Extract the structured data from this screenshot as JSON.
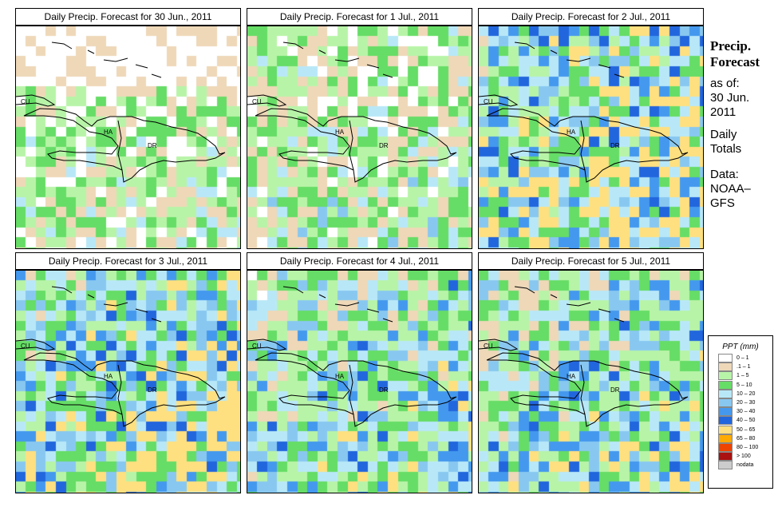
{
  "panels": [
    {
      "title": "Daily Precip. Forecast for  30 Jun., 2011",
      "seed": 11,
      "bias": -0.6,
      "east_bias": 0.0
    },
    {
      "title": "Daily Precip. Forecast for  1 Jul., 2011",
      "seed": 23,
      "bias": -0.3,
      "east_bias": 0.0
    },
    {
      "title": "Daily Precip. Forecast for  2 Jul., 2011",
      "seed": 37,
      "bias": 0.9,
      "east_bias": 0.3
    },
    {
      "title": "Daily Precip. Forecast for  3 Jul., 2011",
      "seed": 41,
      "bias": 0.6,
      "east_bias": 0.4
    },
    {
      "title": "Daily Precip. Forecast for  4 Jul., 2011",
      "seed": 53,
      "bias": 0.3,
      "east_bias": 0.2
    },
    {
      "title": "Daily Precip. Forecast for  5 Jul., 2011",
      "seed": 67,
      "bias": 0.4,
      "east_bias": 0.2
    }
  ],
  "map_labels": {
    "cu": "CU",
    "ha": "HA",
    "dr": "DR"
  },
  "side": {
    "title1": "Precip.",
    "title2": "Forecast",
    "asof": "as of:",
    "date1": "30 Jun.",
    "date2": "2011",
    "totals1": "Daily",
    "totals2": "Totals",
    "data1": "Data:",
    "data2": "NOAA–",
    "data3": "GFS"
  },
  "legend": {
    "title": "PPT (mm)",
    "items": [
      {
        "label": "0 – 1",
        "color": "#ffffff"
      },
      {
        "label": ".1 – 1",
        "color": "#eed8b8"
      },
      {
        "label": "1 – 5",
        "color": "#b8f4a8"
      },
      {
        "label": "5 – 10",
        "color": "#66dd66"
      },
      {
        "label": "10 – 20",
        "color": "#b8e8f8"
      },
      {
        "label": "20 – 30",
        "color": "#88c8f0"
      },
      {
        "label": "30 – 40",
        "color": "#4499ee"
      },
      {
        "label": "40 – 50",
        "color": "#2266dd"
      },
      {
        "label": "50 – 65",
        "color": "#ffe080"
      },
      {
        "label": "65 – 80",
        "color": "#ffaa00"
      },
      {
        "label": "80 – 100",
        "color": "#ee4400"
      },
      {
        "label": "> 100",
        "color": "#aa1111"
      },
      {
        "label": "nodata",
        "color": "#cccccc"
      }
    ]
  }
}
